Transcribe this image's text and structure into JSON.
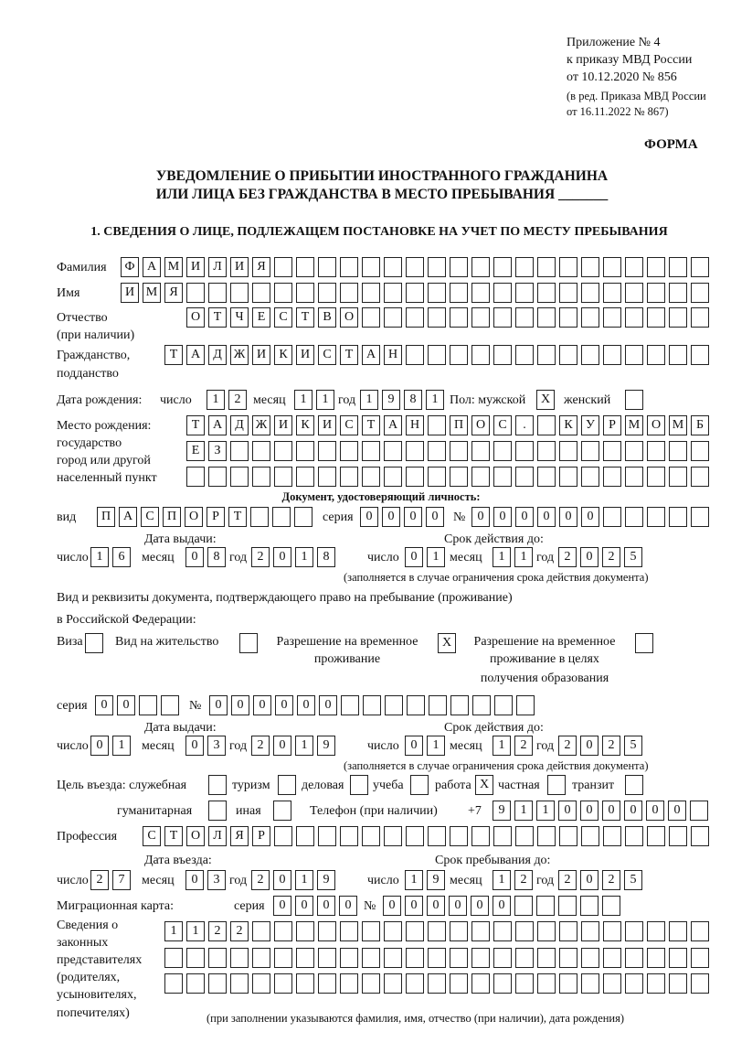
{
  "header": {
    "appendix": "Приложение № 4",
    "order": "к приказу МВД России",
    "order_date": "от 10.12.2020 № 856",
    "edition_1": "(в ред. Приказа МВД России",
    "edition_2": "от 16.11.2022 № 867)",
    "form_label": "ФОРМА"
  },
  "title": {
    "line1": "УВЕДОМЛЕНИЕ О ПРИБЫТИИ ИНОСТРАННОГО ГРАЖДАНИНА",
    "line2": "ИЛИ ЛИЦА БЕЗ ГРАЖДАНСТВА В МЕСТО ПРЕБЫВАНИЯ _______"
  },
  "section1": {
    "title": "1. СВЕДЕНИЯ О ЛИЦЕ, ПОДЛЕЖАЩЕМ ПОСТАНОВКЕ НА УЧЕТ ПО МЕСТУ ПРЕБЫВАНИЯ",
    "surname": {
      "label": "Фамилия",
      "value": "ФАМИЛИЯ"
    },
    "name": {
      "label": "Имя",
      "value": "ИМЯ"
    },
    "patronymic": {
      "label": "Отчество",
      "label2": "(при наличии)",
      "value": "ОТЧЕСТВО"
    },
    "citizenship": {
      "label": "Гражданство,",
      "label2": "подданство",
      "value": "ТАДЖИКИСТАН"
    },
    "birth_date": {
      "label": "Дата рождения:",
      "day_label": "число",
      "day": "12",
      "month_label": "месяц",
      "month": "11",
      "year_label": "год",
      "year": "1981"
    },
    "sex": {
      "label": "Пол: мужской",
      "male": "X",
      "female_label": "женский",
      "female": ""
    },
    "birth_place": {
      "label1": "Место рождения:",
      "label2": "государство",
      "label3": "город или другой",
      "label4": "населенный пункт",
      "row1": "ТАДЖИКИСТАН ПОС. КУРМОМБ",
      "row2": "ЕЗ",
      "row3": ""
    },
    "id_doc": {
      "heading": "Документ, удостоверяющий личность:",
      "type_label": "вид",
      "type": "ПАСПОРТ",
      "series_label": "серия",
      "series": "0000",
      "number_label": "№",
      "number": "000000",
      "issue_label": "Дата выдачи:",
      "expiry_label": "Срок действия до:",
      "issue": {
        "day": "16",
        "month": "08",
        "year": "2018"
      },
      "expiry": {
        "day": "01",
        "month": "11",
        "year": "2025"
      },
      "note": "(заполняется в случае ограничения срока действия документа)"
    },
    "stay_doc": {
      "label1": "Вид и реквизиты документа, подтверждающего право на пребывание (проживание)",
      "label2": "в Российской Федерации:",
      "visa_label": "Виза",
      "visa": "",
      "residence_label": "Вид на жительство",
      "residence": "",
      "trp_label1": "Разрешение на временное",
      "trp_label2": "проживание",
      "trp": "X",
      "trp_edu_label1": "Разрешение на временное",
      "trp_edu_label2": "проживание в целях",
      "trp_edu_label3": "получения образования",
      "trp_edu": "",
      "series_label": "серия",
      "series": "00",
      "number_label": "№",
      "number": "000000",
      "issue_label": "Дата выдачи:",
      "expiry_label": "Срок действия до:",
      "issue": {
        "day": "01",
        "month": "03",
        "year": "2019"
      },
      "expiry": {
        "day": "01",
        "month": "12",
        "year": "2025"
      },
      "note": "(заполняется в случае ограничения срока действия документа)"
    },
    "purpose": {
      "label": "Цель въезда: служебная",
      "official": "",
      "tourism_label": "туризм",
      "tourism": "",
      "business_label": "деловая",
      "business": "",
      "study_label": "учеба",
      "study": "",
      "work_label": "работа",
      "work": "X",
      "private_label": "частная",
      "private": "",
      "transit_label": "транзит",
      "transit": "",
      "humanitarian_label": "гуманитарная",
      "humanitarian": "",
      "other_label": "иная",
      "other": ""
    },
    "phone": {
      "label": "Телефон (при наличии)",
      "prefix": "+7",
      "value": "911000000"
    },
    "profession": {
      "label": "Профессия",
      "value": "СТОЛЯР"
    },
    "entry": {
      "entry_label": "Дата въезда:",
      "stay_label": "Срок пребывания до:",
      "entry_date": {
        "day": "27",
        "month": "03",
        "year": "2019"
      },
      "stay_until": {
        "day": "19",
        "month": "12",
        "year": "2025"
      }
    },
    "migration_card": {
      "label": "Миграционная карта:",
      "series_label": "серия",
      "series": "0000",
      "number_label": "№",
      "number": "000000"
    },
    "representatives": {
      "label1": "Сведения о",
      "label2": "законных",
      "label3": "представителях",
      "label4": "(родителях,",
      "label5": "усыновителях,",
      "label6": "попечителях)",
      "row1": "1122",
      "row2": "",
      "row3": "",
      "note": "(при заполнении указываются фамилия, имя, отчество (при наличии), дата рождения)"
    },
    "common": {
      "day": "число",
      "month": "месяц",
      "year": "год"
    }
  }
}
